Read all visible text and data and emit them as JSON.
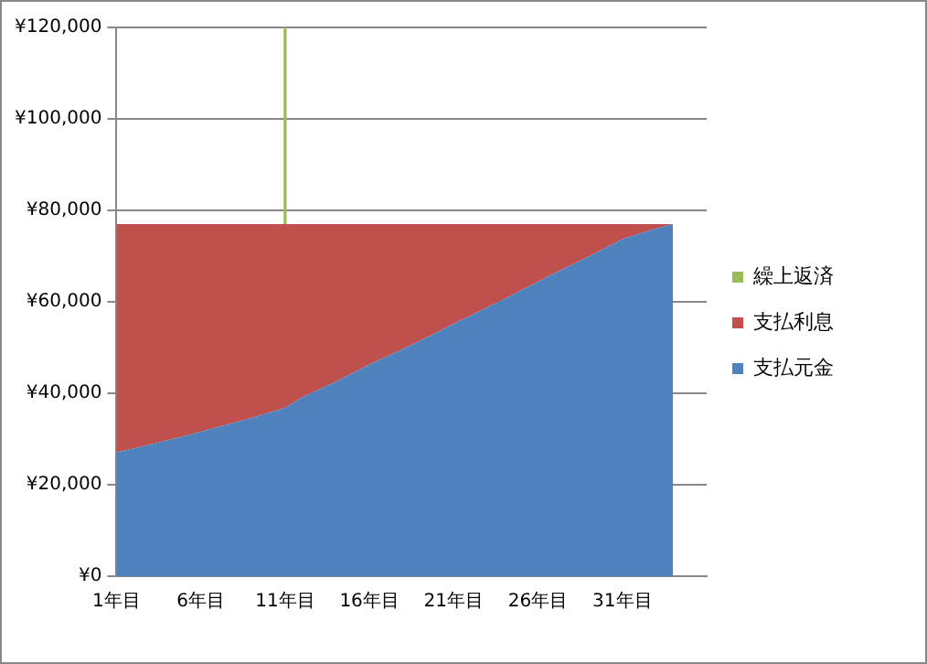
{
  "chart_data": {
    "type": "area",
    "stacked": true,
    "categories": [
      "1年目",
      null,
      null,
      null,
      null,
      "6年目",
      null,
      null,
      null,
      null,
      "11年目",
      null,
      null,
      null,
      null,
      "16年目",
      null,
      null,
      null,
      null,
      "21年目",
      null,
      null,
      null,
      null,
      "26年目",
      null,
      null,
      null,
      null,
      "31年目",
      null,
      null,
      null,
      null,
      null
    ],
    "series": [
      {
        "name": "支払元金",
        "color": "#4f81bd",
        "values": [
          27100,
          27900,
          28800,
          29700,
          30600,
          31600,
          32600,
          33600,
          34600,
          35700,
          36800,
          39100,
          40800,
          42500,
          44400,
          46300,
          48000,
          49700,
          51500,
          53300,
          55200,
          57000,
          58800,
          60600,
          62500,
          64400,
          66300,
          68100,
          69900,
          71800,
          73700,
          74900,
          76000,
          77000,
          null,
          null
        ]
      },
      {
        "name": "支払利息",
        "color": "#c0504d",
        "values": [
          49900,
          49100,
          48200,
          47300,
          46400,
          45400,
          44400,
          43400,
          42400,
          41300,
          40200,
          37900,
          36200,
          34500,
          32600,
          30700,
          29000,
          27300,
          25500,
          23700,
          21800,
          20000,
          18200,
          16400,
          14500,
          12600,
          10700,
          8900,
          7100,
          5200,
          3300,
          2100,
          1000,
          0,
          null,
          null
        ]
      },
      {
        "name": "繰上返済",
        "color": "#9bbb59",
        "type": "bar",
        "base": [
          null,
          null,
          null,
          null,
          null,
          null,
          null,
          null,
          null,
          null,
          77000,
          null,
          null,
          null,
          null,
          null,
          null,
          null,
          null,
          null,
          null,
          null,
          null,
          null,
          null,
          null,
          null,
          null,
          null,
          null,
          null,
          null,
          null,
          null,
          null,
          null
        ],
        "values": [
          null,
          null,
          null,
          null,
          null,
          null,
          null,
          null,
          null,
          null,
          43000,
          null,
          null,
          null,
          null,
          null,
          null,
          null,
          null,
          null,
          null,
          null,
          null,
          null,
          null,
          null,
          null,
          null,
          null,
          null,
          null,
          null,
          null,
          null,
          null,
          null
        ]
      }
    ],
    "ylim": [
      0,
      120000
    ],
    "yticks": [
      {
        "value": 0,
        "label": "¥0"
      },
      {
        "value": 20000,
        "label": "¥20,000"
      },
      {
        "value": 40000,
        "label": "¥40,000"
      },
      {
        "value": 60000,
        "label": "¥60,000"
      },
      {
        "value": 80000,
        "label": "¥80,000"
      },
      {
        "value": 100000,
        "label": "¥100,000"
      },
      {
        "value": 120000,
        "label": "¥120,000"
      }
    ],
    "grid": "y",
    "legend": "right"
  }
}
